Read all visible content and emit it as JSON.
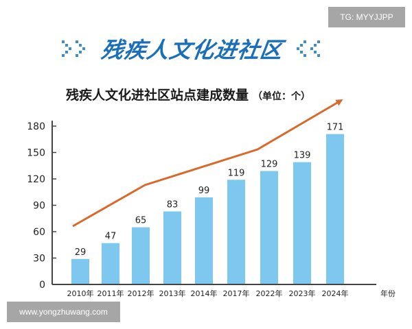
{
  "watermarks": {
    "top": "TG: MYYJJPP",
    "bottom": "www.yongzhuwang.com"
  },
  "banner": {
    "title": "残疾人文化进社区",
    "left_icon": "double-chevron-right-icon",
    "right_icon": "double-chevron-left-icon"
  },
  "colors": {
    "bar": "#7ec8ef",
    "trend_line": "#d9692b",
    "banner_text": "#1a6fb8",
    "chevron": "#3a8fc8",
    "axis": "#444444"
  },
  "chart_data": {
    "type": "bar",
    "title": "残疾人文化进社区站点建成数量",
    "unit_label": "（单位：个）",
    "xlabel": "年份",
    "ylabel": "",
    "categories": [
      "2010年",
      "2011年",
      "2012年",
      "2013年",
      "2014年",
      "2017年",
      "2022年",
      "2023年",
      "2024年"
    ],
    "values": [
      29,
      47,
      65,
      83,
      99,
      119,
      129,
      139,
      171
    ],
    "yticks": [
      0,
      30,
      60,
      90,
      120,
      150,
      180
    ],
    "ylim": [
      0,
      180
    ],
    "grid": false,
    "legend": null,
    "annotations": [
      "orange upward trend arrow above bars"
    ]
  }
}
